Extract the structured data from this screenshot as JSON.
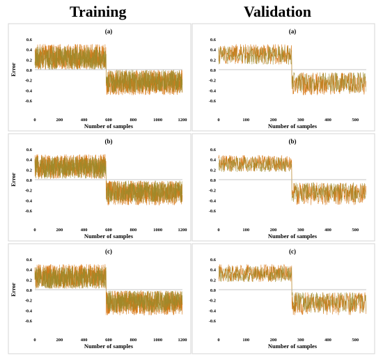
{
  "columns": {
    "training": "Training",
    "validation": "Validation"
  },
  "colors": {
    "series_a": "#d97a1a",
    "series_b": "#9c8a2a",
    "zero_line": "#b0b0b0",
    "panel_border": "#d4d4d4"
  },
  "chart_data": [
    {
      "type": "line",
      "column": "Training",
      "title": "(a)",
      "xlabel": "Number of samples",
      "ylabel": "Error",
      "xlim": [
        0,
        1200
      ],
      "ylim": [
        -0.6,
        0.6
      ],
      "xticks": [
        0,
        200,
        400,
        600,
        800,
        1000,
        1200
      ],
      "yticks": [
        0.6,
        0.4,
        0.2,
        0.0,
        -0.2,
        -0.4,
        -0.6
      ],
      "n": 1200,
      "split": 580,
      "pos_range": [
        0.0,
        0.5
      ],
      "neg_range": [
        -0.5,
        0.0
      ],
      "grid": false,
      "legend": "none"
    },
    {
      "type": "line",
      "column": "Validation",
      "title": "(a)",
      "xlabel": "Number of samples",
      "ylabel": "",
      "xlim": [
        0,
        540
      ],
      "ylim": [
        -0.6,
        0.6
      ],
      "xticks": [
        0,
        100,
        200,
        300,
        400,
        500
      ],
      "yticks": [
        0.6,
        0.4,
        0.2,
        0.0,
        -0.2,
        -0.4,
        -0.6
      ],
      "n": 540,
      "split": 268,
      "pos_range": [
        0.1,
        0.5
      ],
      "neg_range": [
        -0.5,
        -0.05
      ],
      "grid": false,
      "legend": "none"
    },
    {
      "type": "line",
      "column": "Training",
      "title": "(b)",
      "xlabel": "Number of samples",
      "ylabel": "Error",
      "xlim": [
        0,
        1200
      ],
      "ylim": [
        -0.6,
        0.6
      ],
      "xticks": [
        0,
        200,
        400,
        600,
        800,
        1000,
        1200
      ],
      "yticks": [
        0.6,
        0.4,
        0.2,
        0.0,
        -0.2,
        -0.4,
        -0.6
      ],
      "n": 1200,
      "split": 580,
      "pos_range": [
        0.02,
        0.5
      ],
      "neg_range": [
        -0.5,
        -0.02
      ],
      "grid": false,
      "legend": "none"
    },
    {
      "type": "line",
      "column": "Validation",
      "title": "(b)",
      "xlabel": "Number of samples",
      "ylabel": "",
      "xlim": [
        0,
        540
      ],
      "ylim": [
        -0.6,
        0.6
      ],
      "xticks": [
        0,
        100,
        200,
        300,
        400,
        500
      ],
      "yticks": [
        0.6,
        0.4,
        0.2,
        0.0,
        -0.2,
        -0.4,
        -0.6
      ],
      "n": 540,
      "split": 268,
      "pos_range": [
        0.15,
        0.48
      ],
      "neg_range": [
        -0.5,
        -0.05
      ],
      "grid": false,
      "legend": "none"
    },
    {
      "type": "line",
      "column": "Training",
      "title": "(c)",
      "xlabel": "Number of samples",
      "ylabel": "Error",
      "xlim": [
        0,
        1200
      ],
      "ylim": [
        -0.6,
        0.6
      ],
      "xticks": [
        0,
        200,
        400,
        600,
        800,
        1000,
        1200
      ],
      "yticks": [
        0.6,
        0.4,
        0.2,
        0.0,
        -0.2,
        -0.4,
        -0.6
      ],
      "n": 1200,
      "split": 580,
      "pos_range": [
        0.02,
        0.5
      ],
      "neg_range": [
        -0.5,
        -0.02
      ],
      "grid": false,
      "legend": "none"
    },
    {
      "type": "line",
      "column": "Validation",
      "title": "(c)",
      "xlabel": "Number of samples",
      "ylabel": "",
      "xlim": [
        0,
        540
      ],
      "ylim": [
        -0.6,
        0.6
      ],
      "xticks": [
        0,
        100,
        200,
        300,
        400,
        500
      ],
      "yticks": [
        0.6,
        0.4,
        0.2,
        0.0,
        -0.2,
        -0.4,
        -0.6
      ],
      "n": 540,
      "split": 268,
      "pos_range": [
        0.15,
        0.5
      ],
      "neg_range": [
        -0.5,
        -0.05
      ],
      "grid": false,
      "legend": "none"
    }
  ]
}
